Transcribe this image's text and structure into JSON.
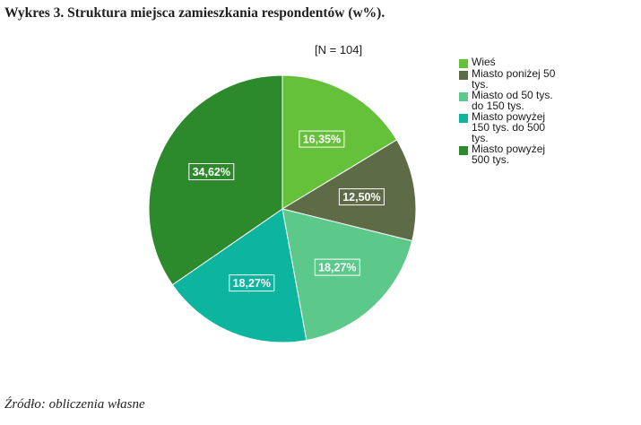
{
  "page": {
    "title": "Wykres 3. Struktura miejsca zamieszkania respondentów (w%).",
    "source": "Źródło: obliczenia własne"
  },
  "chart_data": {
    "type": "pie",
    "subtitle": "[N = 104]",
    "legend_position": "right",
    "categories": [
      "Wieś",
      "Miasto poniżej 50 tys.",
      "Miasto od 50 tys. do 150 tys.",
      "Miasto powyżej 150 tys. do 500 tys.",
      "Miasto powyżej 500 tys."
    ],
    "legend_lines": [
      [
        "Wieś"
      ],
      [
        "Miasto poniżej 50",
        "tys."
      ],
      [
        "Miasto od 50 tys.",
        "do 150 tys."
      ],
      [
        "Miasto powyżej",
        "150 tys. do 500",
        "tys."
      ],
      [
        "Miasto powyżej",
        "500 tys."
      ]
    ],
    "values": [
      16.35,
      12.5,
      18.27,
      18.27,
      34.62
    ],
    "data_labels": [
      "16,35%",
      "12,50%",
      "18,27%",
      "18,27%",
      "34,62%"
    ],
    "colors": [
      "#66c13a",
      "#5d6b47",
      "#5cc98a",
      "#0db59e",
      "#2d8a2c"
    ]
  }
}
